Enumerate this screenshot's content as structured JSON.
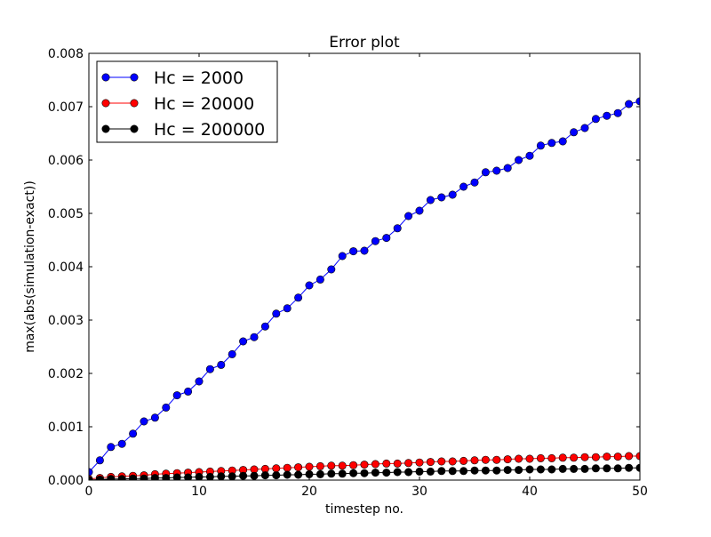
{
  "chart_data": {
    "type": "line",
    "title": "Error plot",
    "xlabel": "timestep no.",
    "ylabel": "max(abs(simulation-exact))",
    "xlim": [
      0,
      50
    ],
    "ylim": [
      0,
      0.008
    ],
    "xticks": [
      "0",
      "10",
      "20",
      "30",
      "40",
      "50"
    ],
    "yticks": [
      "0.000",
      "0.001",
      "0.002",
      "0.003",
      "0.004",
      "0.005",
      "0.006",
      "0.007",
      "0.008"
    ],
    "grid": false,
    "legend_position": "top-left",
    "x": [
      0,
      1,
      2,
      3,
      4,
      5,
      6,
      7,
      8,
      9,
      10,
      11,
      12,
      13,
      14,
      15,
      16,
      17,
      18,
      19,
      20,
      21,
      22,
      23,
      24,
      25,
      26,
      27,
      28,
      29,
      30,
      31,
      32,
      33,
      34,
      35,
      36,
      37,
      38,
      39,
      40,
      41,
      42,
      43,
      44,
      45,
      46,
      47,
      48,
      49,
      50
    ],
    "series": [
      {
        "name": "Hc = 2000",
        "color": "#0000ff",
        "values": [
          0.00015,
          0.00037,
          0.00062,
          0.00068,
          0.00087,
          0.0011,
          0.00117,
          0.00136,
          0.00159,
          0.00166,
          0.00185,
          0.00208,
          0.00216,
          0.00236,
          0.0026,
          0.00268,
          0.00288,
          0.00312,
          0.00322,
          0.00342,
          0.00365,
          0.00376,
          0.00395,
          0.0042,
          0.00429,
          0.0043,
          0.00448,
          0.00454,
          0.00472,
          0.00495,
          0.00505,
          0.00525,
          0.0053,
          0.00535,
          0.0055,
          0.00558,
          0.00577,
          0.0058,
          0.00585,
          0.006,
          0.00608,
          0.00627,
          0.00632,
          0.00635,
          0.00652,
          0.0066,
          0.00677,
          0.00683,
          0.00688,
          0.00705,
          0.0071
        ]
      },
      {
        "name": "Hc = 20000",
        "color": "#ff0000",
        "values": [
          2e-05,
          4e-05,
          6e-05,
          7e-05,
          8e-05,
          9e-05,
          0.00011,
          0.00012,
          0.00013,
          0.00014,
          0.00015,
          0.00016,
          0.00017,
          0.00018,
          0.00019,
          0.0002,
          0.00021,
          0.00022,
          0.00023,
          0.00024,
          0.00025,
          0.00026,
          0.00027,
          0.00027,
          0.00028,
          0.00029,
          0.0003,
          0.00031,
          0.00031,
          0.00032,
          0.00033,
          0.00034,
          0.00035,
          0.00035,
          0.00036,
          0.00037,
          0.00038,
          0.00038,
          0.00039,
          0.0004,
          0.0004,
          0.00041,
          0.00041,
          0.00042,
          0.00042,
          0.00043,
          0.00043,
          0.00044,
          0.00044,
          0.00045,
          0.00045
        ]
      },
      {
        "name": "Hc = 200000",
        "color": "#000000",
        "values": [
          0.0,
          1e-05,
          2e-05,
          2e-05,
          3e-05,
          3e-05,
          4e-05,
          4e-05,
          5e-05,
          5e-05,
          6e-05,
          6e-05,
          7e-05,
          7e-05,
          8e-05,
          8e-05,
          9e-05,
          9e-05,
          0.0001,
          0.0001,
          0.00011,
          0.00011,
          0.00012,
          0.00012,
          0.00013,
          0.00013,
          0.00014,
          0.00014,
          0.00015,
          0.00015,
          0.00016,
          0.00016,
          0.00017,
          0.00017,
          0.00017,
          0.00018,
          0.00018,
          0.00018,
          0.00019,
          0.00019,
          0.0002,
          0.0002,
          0.0002,
          0.00021,
          0.00021,
          0.00021,
          0.00022,
          0.00022,
          0.00022,
          0.00023,
          0.00023
        ]
      }
    ]
  }
}
